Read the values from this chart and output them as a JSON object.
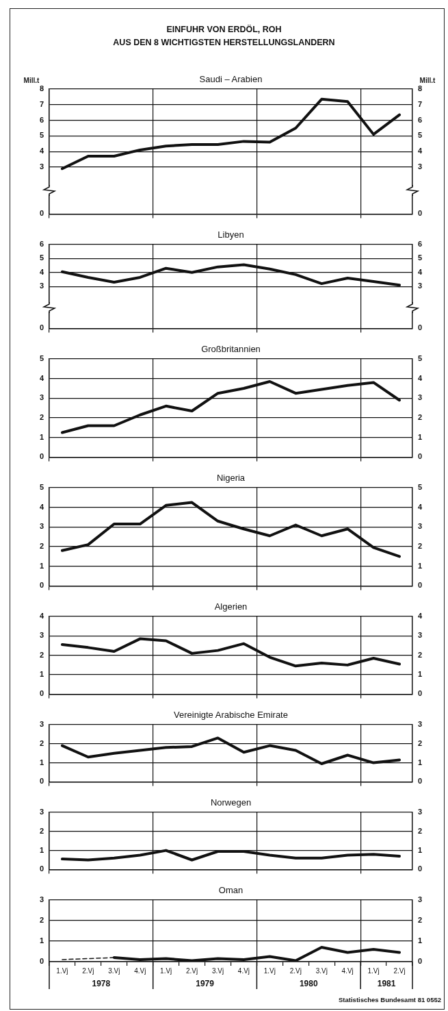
{
  "chart_data": [
    {
      "type": "other",
      "title": "EINFUHR VON ERDÖL, ROH\nAUS DEN 8 WICHTIGSTEN HERSTELLUNGSLANDERN"
    },
    {
      "type": "line",
      "title": "Saudi – Arabien",
      "ylabel": "Mill.t",
      "y2label": "Mill.t",
      "categories": [
        null,
        null,
        null,
        null,
        null,
        null,
        null,
        null,
        null,
        null,
        null,
        null,
        null,
        null
      ],
      "series": [
        {
          "color": "#111111",
          "values": [
            2.9,
            3.7,
            3.7,
            4.1,
            4.35,
            4.45,
            4.45,
            4.65,
            4.6,
            5.5,
            7.35,
            7.2,
            5.1,
            6.35
          ]
        }
      ],
      "ylim": [
        0,
        8
      ],
      "yticks": [
        0,
        3,
        4,
        5,
        6,
        7,
        8
      ],
      "y2lim": [
        0,
        8
      ],
      "y2ticks": [
        0,
        3,
        4,
        5,
        6,
        7,
        8
      ],
      "grid": true,
      "tick_labels": "y"
    },
    {
      "type": "line",
      "title": "Libyen",
      "categories": [
        null,
        null,
        null,
        null,
        null,
        null,
        null,
        null,
        null,
        null,
        null,
        null,
        null,
        null
      ],
      "series": [
        {
          "color": "#111111",
          "values": [
            4.05,
            3.65,
            3.3,
            3.65,
            4.3,
            4.0,
            4.4,
            4.55,
            4.25,
            3.85,
            3.2,
            3.6,
            3.35,
            3.1
          ]
        }
      ],
      "ylim": [
        0,
        6
      ],
      "yticks": [
        0,
        3,
        4,
        5,
        6
      ],
      "y2lim": [
        0,
        6
      ],
      "y2ticks": [
        0,
        3,
        4,
        5,
        6
      ],
      "grid": true,
      "tick_labels": "y"
    },
    {
      "type": "line",
      "title": "Großbritannien",
      "categories": [
        null,
        null,
        null,
        null,
        null,
        null,
        null,
        null,
        null,
        null,
        null,
        null,
        null,
        null
      ],
      "series": [
        {
          "color": "#111111",
          "values": [
            1.25,
            1.6,
            1.6,
            2.15,
            2.6,
            2.35,
            3.25,
            3.5,
            3.85,
            3.25,
            3.45,
            3.65,
            3.8,
            2.9
          ]
        }
      ],
      "ylim": [
        0,
        5
      ],
      "yticks": [
        0,
        1,
        2,
        3,
        4,
        5
      ],
      "y2lim": [
        0,
        5
      ],
      "y2ticks": [
        0,
        1,
        2,
        3,
        4,
        5
      ],
      "grid": true,
      "tick_labels": "y"
    },
    {
      "type": "line",
      "title": "Nigeria",
      "categories": [
        null,
        null,
        null,
        null,
        null,
        null,
        null,
        null,
        null,
        null,
        null,
        null,
        null,
        null
      ],
      "series": [
        {
          "color": "#111111",
          "values": [
            1.8,
            2.1,
            3.15,
            3.15,
            4.1,
            4.25,
            3.3,
            2.9,
            2.55,
            3.1,
            2.55,
            2.9,
            1.95,
            1.5
          ]
        }
      ],
      "ylim": [
        0,
        5
      ],
      "yticks": [
        0,
        1,
        2,
        3,
        4,
        5
      ],
      "y2lim": [
        0,
        5
      ],
      "y2ticks": [
        0,
        1,
        2,
        3,
        4,
        5
      ],
      "grid": true,
      "tick_labels": "y"
    },
    {
      "type": "line",
      "title": "Algerien",
      "categories": [
        null,
        null,
        null,
        null,
        null,
        null,
        null,
        null,
        null,
        null,
        null,
        null,
        null,
        null
      ],
      "series": [
        {
          "color": "#111111",
          "values": [
            2.55,
            2.4,
            2.2,
            2.85,
            2.75,
            2.1,
            2.25,
            2.6,
            1.9,
            1.45,
            1.6,
            1.5,
            1.85,
            1.55
          ]
        }
      ],
      "ylim": [
        0,
        4
      ],
      "yticks": [
        0,
        1,
        2,
        3,
        4
      ],
      "y2lim": [
        0,
        4
      ],
      "y2ticks": [
        0,
        1,
        2,
        3,
        4
      ],
      "grid": true,
      "tick_labels": "y"
    },
    {
      "type": "line",
      "title": "Vereinigte Arabische Emirate",
      "categories": [
        null,
        null,
        null,
        null,
        null,
        null,
        null,
        null,
        null,
        null,
        null,
        null,
        null,
        null
      ],
      "series": [
        {
          "color": "#111111",
          "values": [
            1.9,
            1.3,
            1.5,
            1.65,
            1.8,
            1.85,
            2.3,
            1.55,
            1.9,
            1.65,
            0.95,
            1.4,
            1.0,
            1.15
          ]
        }
      ],
      "ylim": [
        0,
        3
      ],
      "yticks": [
        0,
        1,
        2,
        3
      ],
      "y2lim": [
        0,
        3
      ],
      "y2ticks": [
        0,
        1,
        2,
        3
      ],
      "grid": true,
      "tick_labels": "y"
    },
    {
      "type": "line",
      "title": "Norwegen",
      "categories": [
        null,
        null,
        null,
        null,
        null,
        null,
        null,
        null,
        null,
        null,
        null,
        null,
        null,
        null
      ],
      "series": [
        {
          "color": "#111111",
          "values": [
            0.55,
            0.5,
            0.6,
            0.75,
            1.0,
            0.5,
            0.95,
            0.95,
            0.75,
            0.6,
            0.6,
            0.75,
            0.8,
            0.7
          ]
        }
      ],
      "ylim": [
        0,
        3
      ],
      "yticks": [
        0,
        1,
        2,
        3
      ],
      "y2lim": [
        0,
        3
      ],
      "y2ticks": [
        0,
        1,
        2,
        3
      ],
      "grid": true,
      "tick_labels": "y"
    },
    {
      "type": "line",
      "title": "Oman",
      "categories": [
        "1.Vj",
        "2.Vj",
        "3.Vj",
        "4.Vj",
        "1.Vj",
        "2.Vj",
        "3.Vj",
        "4.Vj",
        "1.Vj",
        "2.Vj",
        "3.Vj",
        "4.Vj",
        "1.Vj",
        "2.Vj"
      ],
      "series": [
        {
          "color": "#111111",
          "values": [
            null,
            null,
            0.2,
            0.1,
            0.15,
            0.05,
            0.15,
            0.1,
            0.25,
            0.05,
            0.7,
            0.45,
            0.6,
            0.45
          ]
        },
        {
          "color": "#111111",
          "line_style": "dashed",
          "values": [
            0.1,
            null,
            0.2,
            null,
            null,
            null,
            null,
            null,
            null,
            null,
            null,
            null,
            null,
            null
          ]
        }
      ],
      "ylim": [
        0,
        3
      ],
      "yticks": [
        0,
        1,
        2,
        3
      ],
      "y2lim": [
        0,
        3
      ],
      "y2ticks": [
        0,
        1,
        2,
        3
      ],
      "grid": true,
      "annotations": [
        "1978",
        "1979",
        "1980",
        "1981"
      ]
    },
    {
      "type": "other",
      "annotations": [
        "Statistisches Bundesamt 81 0552"
      ]
    }
  ]
}
